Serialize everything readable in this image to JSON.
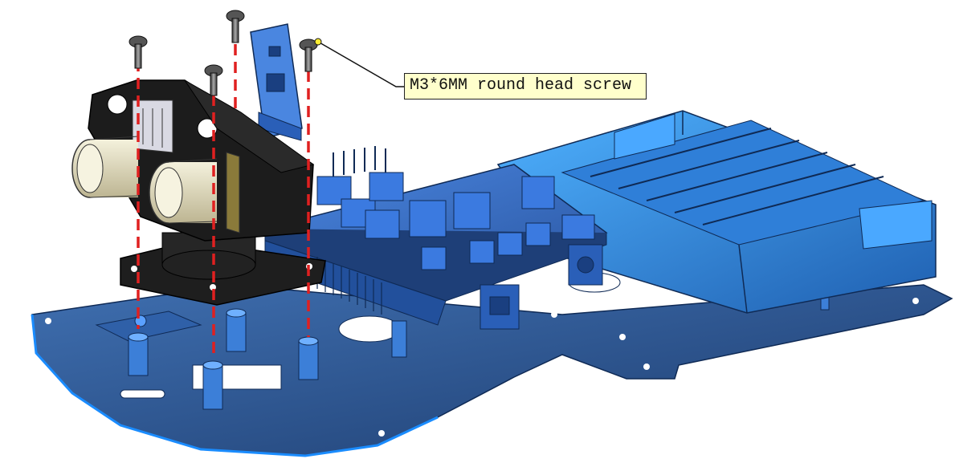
{
  "diagram": {
    "callout": {
      "text": "M3*6MM round head screw"
    },
    "parts": [
      "robot-chassis-plate",
      "battery-holder",
      "controller-board",
      "servo-motor",
      "ultrasonic-sensor-bracket",
      "ultrasonic-sensor",
      "bluetooth-module",
      "round-head-screw"
    ],
    "colors": {
      "chassis": "#2a4f86",
      "chassis_edge": "#1a8cff",
      "board": "#3a6bbf",
      "battery_holder": "#2f8fe0",
      "bracket": "#1c1c1c",
      "sensor": "#e8e4c8",
      "guide_line": "#e02020",
      "callout_bg": "#ffffcc"
    }
  }
}
